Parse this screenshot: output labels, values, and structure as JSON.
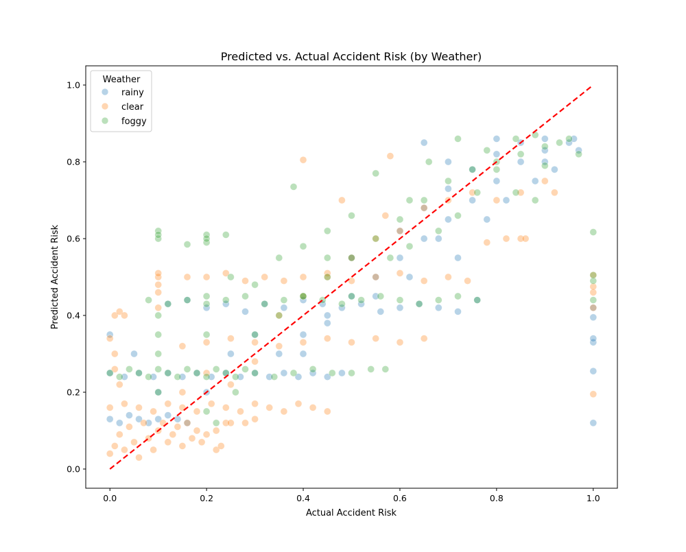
{
  "chart_data": {
    "type": "scatter",
    "title": "Predicted vs. Actual Accident Risk (by Weather)",
    "xlabel": "Actual Accident Risk",
    "ylabel": "Predicted Accident Risk",
    "xlim": [
      -0.05,
      1.05
    ],
    "ylim": [
      -0.05,
      1.05
    ],
    "xticks": [
      "0.0",
      "0.2",
      "0.4",
      "0.6",
      "0.8",
      "1.0"
    ],
    "yticks": [
      "0.0",
      "0.2",
      "0.4",
      "0.6",
      "0.8",
      "1.0"
    ],
    "grid": false,
    "legend": {
      "title": "Weather",
      "placement": "top-left"
    },
    "reference_line": {
      "from": [
        0,
        0
      ],
      "to": [
        1,
        1
      ],
      "color": "#ff0000",
      "style": "dashed"
    },
    "series": [
      {
        "name": "rainy",
        "color": "#1f77b4",
        "points": [
          [
            0.0,
            0.13
          ],
          [
            0.02,
            0.12
          ],
          [
            0.04,
            0.14
          ],
          [
            0.06,
            0.13
          ],
          [
            0.08,
            0.12
          ],
          [
            0.1,
            0.13
          ],
          [
            0.12,
            0.14
          ],
          [
            0.14,
            0.13
          ],
          [
            0.16,
            0.12
          ],
          [
            0.0,
            0.25
          ],
          [
            0.03,
            0.24
          ],
          [
            0.06,
            0.25
          ],
          [
            0.09,
            0.24
          ],
          [
            0.12,
            0.25
          ],
          [
            0.15,
            0.24
          ],
          [
            0.18,
            0.25
          ],
          [
            0.21,
            0.24
          ],
          [
            0.24,
            0.25
          ],
          [
            0.27,
            0.24
          ],
          [
            0.3,
            0.25
          ],
          [
            0.33,
            0.24
          ],
          [
            0.36,
            0.25
          ],
          [
            0.39,
            0.24
          ],
          [
            0.42,
            0.25
          ],
          [
            0.45,
            0.24
          ],
          [
            0.48,
            0.25
          ],
          [
            0.12,
            0.43
          ],
          [
            0.16,
            0.44
          ],
          [
            0.2,
            0.42
          ],
          [
            0.24,
            0.43
          ],
          [
            0.28,
            0.41
          ],
          [
            0.32,
            0.43
          ],
          [
            0.36,
            0.42
          ],
          [
            0.4,
            0.44
          ],
          [
            0.44,
            0.43
          ],
          [
            0.48,
            0.42
          ],
          [
            0.52,
            0.43
          ],
          [
            0.56,
            0.41
          ],
          [
            0.6,
            0.42
          ],
          [
            0.64,
            0.43
          ],
          [
            0.68,
            0.42
          ],
          [
            0.72,
            0.41
          ],
          [
            0.76,
            0.44
          ],
          [
            0.35,
            0.3
          ],
          [
            0.4,
            0.35
          ],
          [
            0.45,
            0.38
          ],
          [
            0.5,
            0.45
          ],
          [
            0.55,
            0.5
          ],
          [
            0.6,
            0.55
          ],
          [
            0.65,
            0.6
          ],
          [
            0.7,
            0.65
          ],
          [
            0.75,
            0.7
          ],
          [
            0.8,
            0.75
          ],
          [
            0.85,
            0.8
          ],
          [
            0.9,
            0.83
          ],
          [
            0.95,
            0.85
          ],
          [
            0.6,
            0.62
          ],
          [
            0.65,
            0.68
          ],
          [
            0.7,
            0.73
          ],
          [
            0.75,
            0.78
          ],
          [
            0.8,
            0.82
          ],
          [
            0.85,
            0.85
          ],
          [
            0.9,
            0.86
          ],
          [
            0.96,
            0.86
          ],
          [
            0.97,
            0.83
          ],
          [
            0.0,
            0.35
          ],
          [
            0.05,
            0.3
          ],
          [
            0.1,
            0.2
          ],
          [
            0.2,
            0.2
          ],
          [
            0.25,
            0.3
          ],
          [
            0.3,
            0.35
          ],
          [
            0.4,
            0.3
          ],
          [
            0.45,
            0.4
          ],
          [
            0.5,
            0.55
          ],
          [
            0.55,
            0.45
          ],
          [
            0.62,
            0.5
          ],
          [
            0.68,
            0.6
          ],
          [
            0.72,
            0.55
          ],
          [
            0.78,
            0.65
          ],
          [
            0.82,
            0.7
          ],
          [
            0.88,
            0.75
          ],
          [
            0.92,
            0.78
          ],
          [
            0.65,
            0.85
          ],
          [
            0.8,
            0.86
          ],
          [
            0.9,
            0.8
          ],
          [
            0.7,
            0.8
          ],
          [
            1.0,
            0.12
          ],
          [
            1.0,
            0.255
          ],
          [
            1.0,
            0.33
          ],
          [
            1.0,
            0.34
          ],
          [
            1.0,
            0.395
          ],
          [
            1.0,
            0.42
          ]
        ]
      },
      {
        "name": "clear",
        "color": "#ff7f0e",
        "points": [
          [
            0.0,
            0.04
          ],
          [
            0.01,
            0.06
          ],
          [
            0.02,
            0.09
          ],
          [
            0.03,
            0.05
          ],
          [
            0.04,
            0.11
          ],
          [
            0.05,
            0.07
          ],
          [
            0.06,
            0.03
          ],
          [
            0.07,
            0.12
          ],
          [
            0.08,
            0.08
          ],
          [
            0.09,
            0.05
          ],
          [
            0.1,
            0.1
          ],
          [
            0.11,
            0.12
          ],
          [
            0.12,
            0.07
          ],
          [
            0.13,
            0.09
          ],
          [
            0.14,
            0.11
          ],
          [
            0.15,
            0.06
          ],
          [
            0.16,
            0.12
          ],
          [
            0.17,
            0.08
          ],
          [
            0.18,
            0.1
          ],
          [
            0.19,
            0.07
          ],
          [
            0.2,
            0.09
          ],
          [
            0.22,
            0.05
          ],
          [
            0.24,
            0.12
          ],
          [
            0.0,
            0.16
          ],
          [
            0.03,
            0.17
          ],
          [
            0.06,
            0.16
          ],
          [
            0.09,
            0.15
          ],
          [
            0.12,
            0.17
          ],
          [
            0.15,
            0.16
          ],
          [
            0.18,
            0.15
          ],
          [
            0.21,
            0.17
          ],
          [
            0.24,
            0.16
          ],
          [
            0.27,
            0.15
          ],
          [
            0.3,
            0.17
          ],
          [
            0.33,
            0.16
          ],
          [
            0.36,
            0.15
          ],
          [
            0.39,
            0.17
          ],
          [
            0.42,
            0.16
          ],
          [
            0.45,
            0.15
          ],
          [
            0.0,
            0.34
          ],
          [
            0.01,
            0.3
          ],
          [
            0.01,
            0.4
          ],
          [
            0.02,
            0.41
          ],
          [
            0.03,
            0.4
          ],
          [
            0.02,
            0.22
          ],
          [
            0.01,
            0.26
          ],
          [
            0.1,
            0.5
          ],
          [
            0.1,
            0.48
          ],
          [
            0.1,
            0.51
          ],
          [
            0.1,
            0.46
          ],
          [
            0.1,
            0.42
          ],
          [
            0.15,
            0.32
          ],
          [
            0.2,
            0.33
          ],
          [
            0.25,
            0.34
          ],
          [
            0.3,
            0.33
          ],
          [
            0.35,
            0.32
          ],
          [
            0.4,
            0.33
          ],
          [
            0.45,
            0.34
          ],
          [
            0.5,
            0.33
          ],
          [
            0.55,
            0.34
          ],
          [
            0.6,
            0.33
          ],
          [
            0.65,
            0.34
          ],
          [
            0.16,
            0.5
          ],
          [
            0.2,
            0.5
          ],
          [
            0.24,
            0.51
          ],
          [
            0.28,
            0.49
          ],
          [
            0.32,
            0.5
          ],
          [
            0.36,
            0.49
          ],
          [
            0.4,
            0.5
          ],
          [
            0.45,
            0.51
          ],
          [
            0.5,
            0.49
          ],
          [
            0.55,
            0.5
          ],
          [
            0.6,
            0.51
          ],
          [
            0.65,
            0.49
          ],
          [
            0.7,
            0.5
          ],
          [
            0.74,
            0.49
          ],
          [
            0.35,
            0.4
          ],
          [
            0.4,
            0.45
          ],
          [
            0.45,
            0.5
          ],
          [
            0.5,
            0.55
          ],
          [
            0.55,
            0.6
          ],
          [
            0.6,
            0.62
          ],
          [
            0.65,
            0.68
          ],
          [
            0.7,
            0.7
          ],
          [
            0.75,
            0.72
          ],
          [
            0.8,
            0.7
          ],
          [
            0.85,
            0.72
          ],
          [
            0.9,
            0.75
          ],
          [
            0.92,
            0.72
          ],
          [
            0.4,
            0.805
          ],
          [
            0.48,
            0.7
          ],
          [
            0.58,
            0.815
          ],
          [
            0.57,
            0.66
          ],
          [
            0.78,
            0.59
          ],
          [
            0.82,
            0.6
          ],
          [
            0.85,
            0.6
          ],
          [
            0.86,
            0.6
          ],
          [
            0.15,
            0.2
          ],
          [
            0.2,
            0.25
          ],
          [
            0.25,
            0.22
          ],
          [
            0.3,
            0.28
          ],
          [
            0.22,
            0.1
          ],
          [
            0.25,
            0.12
          ],
          [
            0.23,
            0.06
          ],
          [
            0.28,
            0.12
          ],
          [
            0.3,
            0.13
          ],
          [
            1.0,
            0.195
          ],
          [
            1.0,
            0.42
          ],
          [
            1.0,
            0.46
          ],
          [
            1.0,
            0.475
          ],
          [
            1.0,
            0.505
          ]
        ]
      },
      {
        "name": "foggy",
        "color": "#2ca02c",
        "points": [
          [
            0.0,
            0.25
          ],
          [
            0.02,
            0.24
          ],
          [
            0.04,
            0.26
          ],
          [
            0.06,
            0.25
          ],
          [
            0.08,
            0.24
          ],
          [
            0.1,
            0.26
          ],
          [
            0.12,
            0.25
          ],
          [
            0.14,
            0.24
          ],
          [
            0.16,
            0.26
          ],
          [
            0.18,
            0.25
          ],
          [
            0.2,
            0.24
          ],
          [
            0.22,
            0.26
          ],
          [
            0.24,
            0.25
          ],
          [
            0.26,
            0.24
          ],
          [
            0.28,
            0.26
          ],
          [
            0.3,
            0.25
          ],
          [
            0.34,
            0.24
          ],
          [
            0.38,
            0.25
          ],
          [
            0.42,
            0.26
          ],
          [
            0.46,
            0.25
          ],
          [
            0.5,
            0.25
          ],
          [
            0.54,
            0.26
          ],
          [
            0.57,
            0.26
          ],
          [
            0.08,
            0.44
          ],
          [
            0.12,
            0.43
          ],
          [
            0.16,
            0.44
          ],
          [
            0.2,
            0.43
          ],
          [
            0.24,
            0.44
          ],
          [
            0.28,
            0.45
          ],
          [
            0.32,
            0.43
          ],
          [
            0.36,
            0.44
          ],
          [
            0.4,
            0.45
          ],
          [
            0.44,
            0.44
          ],
          [
            0.48,
            0.43
          ],
          [
            0.52,
            0.44
          ],
          [
            0.56,
            0.45
          ],
          [
            0.6,
            0.44
          ],
          [
            0.64,
            0.43
          ],
          [
            0.68,
            0.44
          ],
          [
            0.72,
            0.45
          ],
          [
            0.76,
            0.44
          ],
          [
            0.1,
            0.6
          ],
          [
            0.1,
            0.62
          ],
          [
            0.1,
            0.61
          ],
          [
            0.2,
            0.59
          ],
          [
            0.2,
            0.61
          ],
          [
            0.2,
            0.6
          ],
          [
            0.24,
            0.61
          ],
          [
            0.16,
            0.585
          ],
          [
            0.1,
            0.3
          ],
          [
            0.1,
            0.35
          ],
          [
            0.1,
            0.4
          ],
          [
            0.1,
            0.2
          ],
          [
            0.2,
            0.15
          ],
          [
            0.2,
            0.35
          ],
          [
            0.22,
            0.12
          ],
          [
            0.26,
            0.2
          ],
          [
            0.3,
            0.35
          ],
          [
            0.35,
            0.4
          ],
          [
            0.4,
            0.45
          ],
          [
            0.45,
            0.5
          ],
          [
            0.5,
            0.55
          ],
          [
            0.55,
            0.6
          ],
          [
            0.6,
            0.65
          ],
          [
            0.65,
            0.7
          ],
          [
            0.7,
            0.75
          ],
          [
            0.75,
            0.78
          ],
          [
            0.8,
            0.8
          ],
          [
            0.85,
            0.82
          ],
          [
            0.9,
            0.84
          ],
          [
            0.95,
            0.86
          ],
          [
            0.38,
            0.735
          ],
          [
            0.45,
            0.62
          ],
          [
            0.5,
            0.66
          ],
          [
            0.55,
            0.77
          ],
          [
            0.62,
            0.7
          ],
          [
            0.66,
            0.8
          ],
          [
            0.72,
            0.86
          ],
          [
            0.78,
            0.83
          ],
          [
            0.84,
            0.86
          ],
          [
            0.88,
            0.87
          ],
          [
            0.93,
            0.85
          ],
          [
            0.97,
            0.82
          ],
          [
            0.58,
            0.55
          ],
          [
            0.62,
            0.58
          ],
          [
            0.68,
            0.62
          ],
          [
            0.72,
            0.66
          ],
          [
            0.76,
            0.72
          ],
          [
            0.8,
            0.78
          ],
          [
            0.84,
            0.72
          ],
          [
            0.88,
            0.7
          ],
          [
            0.9,
            0.79
          ],
          [
            0.2,
            0.45
          ],
          [
            0.25,
            0.5
          ],
          [
            0.3,
            0.48
          ],
          [
            0.35,
            0.55
          ],
          [
            0.4,
            0.58
          ],
          [
            0.45,
            0.55
          ],
          [
            0.5,
            0.45
          ],
          [
            1.0,
            0.44
          ],
          [
            1.0,
            0.49
          ],
          [
            1.0,
            0.505
          ],
          [
            1.0,
            0.617
          ]
        ]
      }
    ]
  }
}
